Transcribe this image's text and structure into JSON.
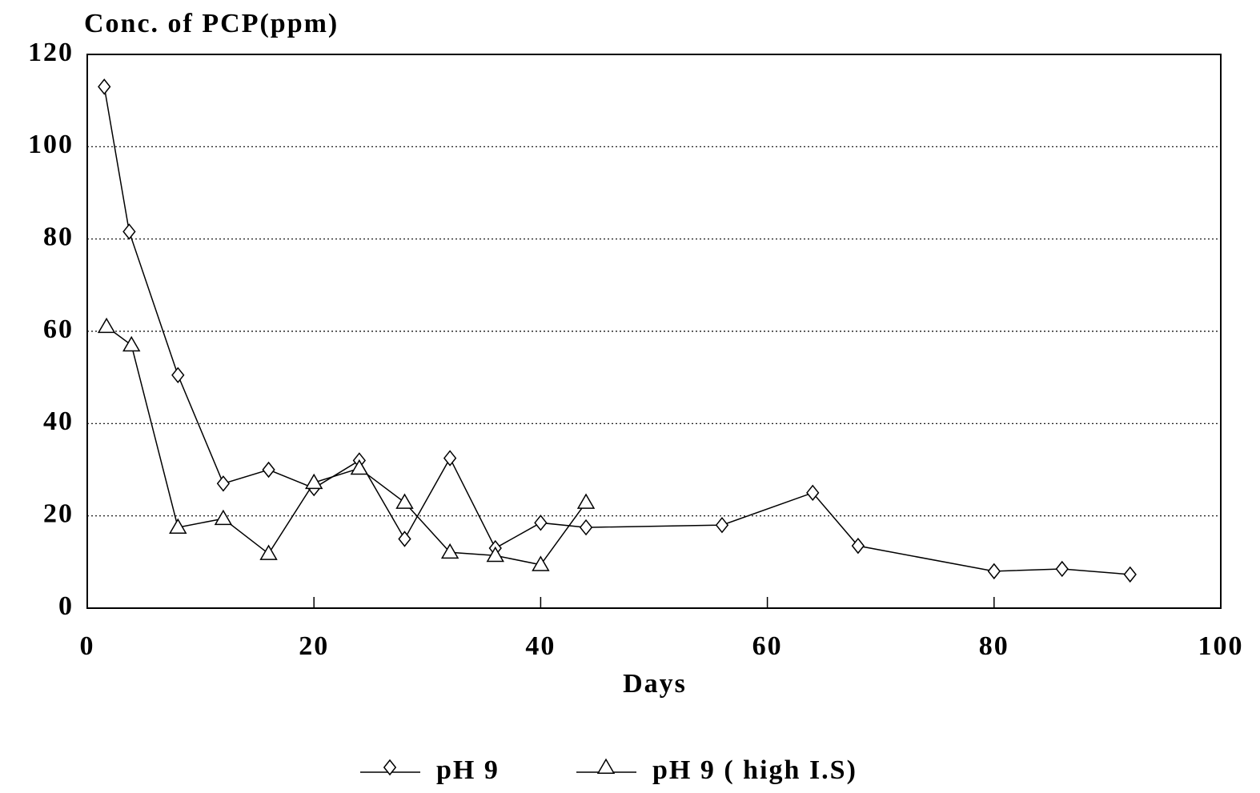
{
  "chart_data": {
    "type": "line",
    "y_label": "Conc. of PCP(ppm)",
    "x_label": "Days",
    "xlim": [
      0,
      100
    ],
    "xticks": [
      0,
      20,
      40,
      60,
      80,
      100
    ],
    "ylim": [
      0,
      120
    ],
    "yticks": [
      0,
      20,
      40,
      60,
      80,
      100,
      120
    ],
    "grid": true,
    "legend": "bottom",
    "series": [
      {
        "name": "pH 9",
        "color": "#000000",
        "marker": "diamond",
        "x": [
          1.5,
          3.7,
          8,
          12,
          16,
          20,
          24,
          28,
          32,
          36,
          40,
          44,
          56,
          64,
          68,
          80,
          86,
          92
        ],
        "values": [
          113,
          81.6,
          50.5,
          27,
          30,
          26,
          32,
          15,
          32.5,
          13,
          18.5,
          17.5,
          18,
          25,
          13.5,
          8,
          8.5,
          7.3
        ]
      },
      {
        "name": "pH 9 ( high I.S)",
        "color": "#000000",
        "marker": "triangle",
        "x": [
          1.7,
          3.9,
          8,
          12,
          16,
          20,
          24,
          28,
          32,
          36,
          40,
          44
        ],
        "values": [
          61,
          57,
          17.5,
          19.4,
          11.8,
          27.2,
          30.3,
          22.9,
          12.1,
          11.4,
          9.4,
          22.9
        ]
      }
    ]
  }
}
